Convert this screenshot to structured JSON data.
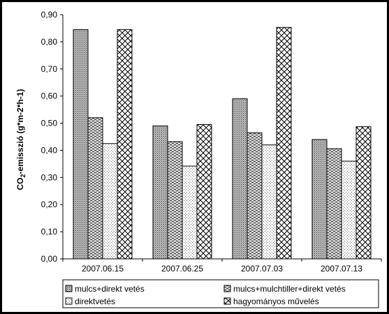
{
  "chart_data": {
    "type": "bar",
    "ylabel": "CO2-emisszió (g*m-2*h-1)",
    "ylabel_parts": {
      "pre": "CO",
      "sub": "2",
      "post": "-emisszió (g*m-2*h-1)"
    },
    "ylim": [
      0,
      0.9
    ],
    "yticks": [
      "0,00",
      "0,10",
      "0,20",
      "0,30",
      "0,40",
      "0,50",
      "0,60",
      "0,70",
      "0,80",
      "0,90"
    ],
    "categories": [
      "2007.06.15",
      "2007.06.25",
      "2007.07.03",
      "2007.07.13"
    ],
    "grid": false,
    "legend_position": "bottom",
    "series": [
      {
        "name": "mulcs+direkt vetés",
        "values": [
          0.845,
          0.49,
          0.59,
          0.44
        ]
      },
      {
        "name": "mulcs+mulchtiller+direkt vetés",
        "values": [
          0.52,
          0.432,
          0.465,
          0.406
        ]
      },
      {
        "name": "direktvetés",
        "values": [
          0.425,
          0.342,
          0.42,
          0.36
        ]
      },
      {
        "name": "hagyományos művelés",
        "values": [
          0.845,
          0.495,
          0.853,
          0.487
        ]
      }
    ]
  }
}
